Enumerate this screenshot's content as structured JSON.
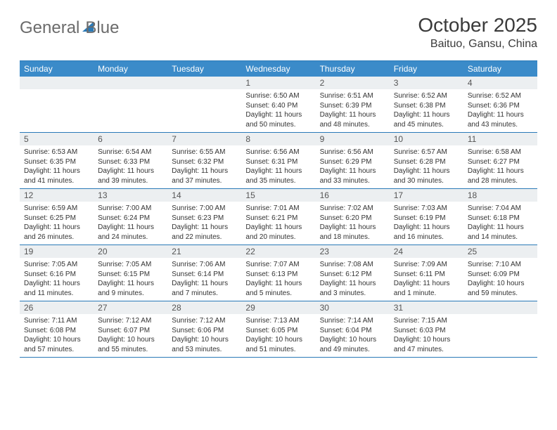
{
  "brand": {
    "word1": "General",
    "word2": "Blue"
  },
  "title": "October 2025",
  "location": "Baituo, Gansu, China",
  "colors": {
    "header_bg": "#3b8bc9",
    "rule": "#2a7ab8",
    "daynum_bg": "#eceff1",
    "text": "#333333",
    "title_text": "#3a3a3a",
    "logo_gray": "#6b6b6b"
  },
  "day_labels": [
    "Sunday",
    "Monday",
    "Tuesday",
    "Wednesday",
    "Thursday",
    "Friday",
    "Saturday"
  ],
  "weeks": [
    [
      {
        "n": "",
        "sr": "",
        "ss": "",
        "dl": ""
      },
      {
        "n": "",
        "sr": "",
        "ss": "",
        "dl": ""
      },
      {
        "n": "",
        "sr": "",
        "ss": "",
        "dl": ""
      },
      {
        "n": "1",
        "sr": "6:50 AM",
        "ss": "6:40 PM",
        "dl": "11 hours and 50 minutes."
      },
      {
        "n": "2",
        "sr": "6:51 AM",
        "ss": "6:39 PM",
        "dl": "11 hours and 48 minutes."
      },
      {
        "n": "3",
        "sr": "6:52 AM",
        "ss": "6:38 PM",
        "dl": "11 hours and 45 minutes."
      },
      {
        "n": "4",
        "sr": "6:52 AM",
        "ss": "6:36 PM",
        "dl": "11 hours and 43 minutes."
      }
    ],
    [
      {
        "n": "5",
        "sr": "6:53 AM",
        "ss": "6:35 PM",
        "dl": "11 hours and 41 minutes."
      },
      {
        "n": "6",
        "sr": "6:54 AM",
        "ss": "6:33 PM",
        "dl": "11 hours and 39 minutes."
      },
      {
        "n": "7",
        "sr": "6:55 AM",
        "ss": "6:32 PM",
        "dl": "11 hours and 37 minutes."
      },
      {
        "n": "8",
        "sr": "6:56 AM",
        "ss": "6:31 PM",
        "dl": "11 hours and 35 minutes."
      },
      {
        "n": "9",
        "sr": "6:56 AM",
        "ss": "6:29 PM",
        "dl": "11 hours and 33 minutes."
      },
      {
        "n": "10",
        "sr": "6:57 AM",
        "ss": "6:28 PM",
        "dl": "11 hours and 30 minutes."
      },
      {
        "n": "11",
        "sr": "6:58 AM",
        "ss": "6:27 PM",
        "dl": "11 hours and 28 minutes."
      }
    ],
    [
      {
        "n": "12",
        "sr": "6:59 AM",
        "ss": "6:25 PM",
        "dl": "11 hours and 26 minutes."
      },
      {
        "n": "13",
        "sr": "7:00 AM",
        "ss": "6:24 PM",
        "dl": "11 hours and 24 minutes."
      },
      {
        "n": "14",
        "sr": "7:00 AM",
        "ss": "6:23 PM",
        "dl": "11 hours and 22 minutes."
      },
      {
        "n": "15",
        "sr": "7:01 AM",
        "ss": "6:21 PM",
        "dl": "11 hours and 20 minutes."
      },
      {
        "n": "16",
        "sr": "7:02 AM",
        "ss": "6:20 PM",
        "dl": "11 hours and 18 minutes."
      },
      {
        "n": "17",
        "sr": "7:03 AM",
        "ss": "6:19 PM",
        "dl": "11 hours and 16 minutes."
      },
      {
        "n": "18",
        "sr": "7:04 AM",
        "ss": "6:18 PM",
        "dl": "11 hours and 14 minutes."
      }
    ],
    [
      {
        "n": "19",
        "sr": "7:05 AM",
        "ss": "6:16 PM",
        "dl": "11 hours and 11 minutes."
      },
      {
        "n": "20",
        "sr": "7:05 AM",
        "ss": "6:15 PM",
        "dl": "11 hours and 9 minutes."
      },
      {
        "n": "21",
        "sr": "7:06 AM",
        "ss": "6:14 PM",
        "dl": "11 hours and 7 minutes."
      },
      {
        "n": "22",
        "sr": "7:07 AM",
        "ss": "6:13 PM",
        "dl": "11 hours and 5 minutes."
      },
      {
        "n": "23",
        "sr": "7:08 AM",
        "ss": "6:12 PM",
        "dl": "11 hours and 3 minutes."
      },
      {
        "n": "24",
        "sr": "7:09 AM",
        "ss": "6:11 PM",
        "dl": "11 hours and 1 minute."
      },
      {
        "n": "25",
        "sr": "7:10 AM",
        "ss": "6:09 PM",
        "dl": "10 hours and 59 minutes."
      }
    ],
    [
      {
        "n": "26",
        "sr": "7:11 AM",
        "ss": "6:08 PM",
        "dl": "10 hours and 57 minutes."
      },
      {
        "n": "27",
        "sr": "7:12 AM",
        "ss": "6:07 PM",
        "dl": "10 hours and 55 minutes."
      },
      {
        "n": "28",
        "sr": "7:12 AM",
        "ss": "6:06 PM",
        "dl": "10 hours and 53 minutes."
      },
      {
        "n": "29",
        "sr": "7:13 AM",
        "ss": "6:05 PM",
        "dl": "10 hours and 51 minutes."
      },
      {
        "n": "30",
        "sr": "7:14 AM",
        "ss": "6:04 PM",
        "dl": "10 hours and 49 minutes."
      },
      {
        "n": "31",
        "sr": "7:15 AM",
        "ss": "6:03 PM",
        "dl": "10 hours and 47 minutes."
      },
      {
        "n": "",
        "sr": "",
        "ss": "",
        "dl": ""
      }
    ]
  ],
  "labels": {
    "sunrise": "Sunrise:",
    "sunset": "Sunset:",
    "daylight": "Daylight:"
  }
}
